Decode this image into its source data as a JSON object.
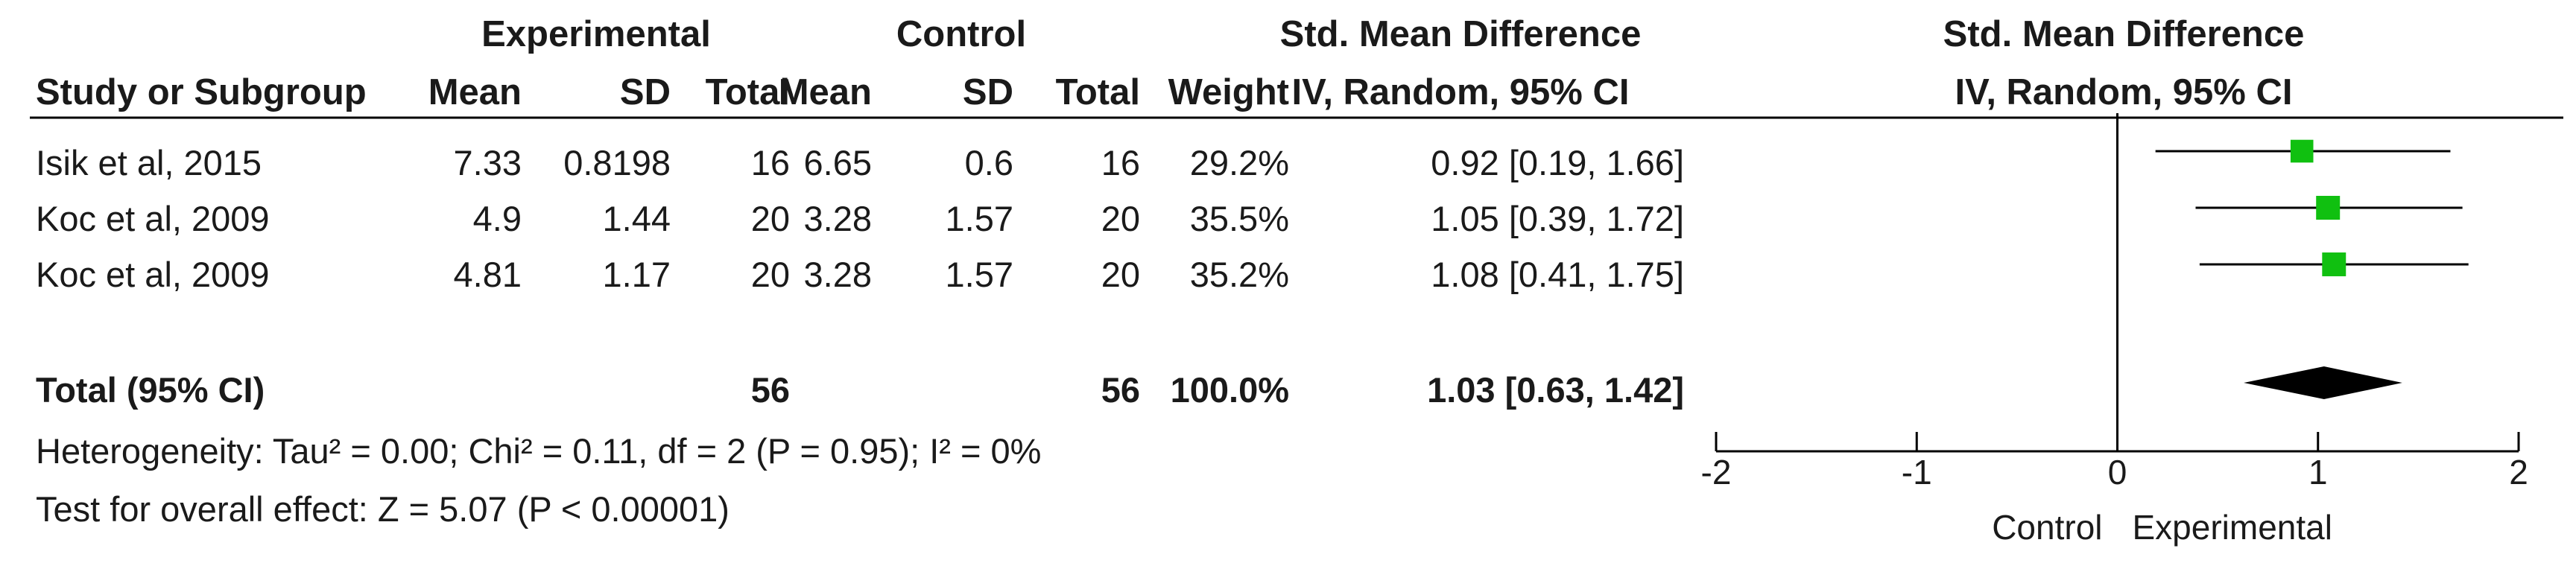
{
  "header": {
    "group_experimental": "Experimental",
    "group_control": "Control",
    "effect_title": "Std. Mean Difference",
    "effect_method": "IV, Random, 95% CI",
    "plot_title": "Std. Mean Difference",
    "plot_method": "IV, Random, 95% CI",
    "col_study": "Study or Subgroup",
    "col_mean_e": "Mean",
    "col_sd_e": "SD",
    "col_total_e": "Total",
    "col_mean_c": "Mean",
    "col_sd_c": "SD",
    "col_total_c": "Total",
    "col_weight": "Weight"
  },
  "rows": [
    {
      "study": "Isik et al, 2015",
      "mean_e": "7.33",
      "sd_e": "0.8198",
      "total_e": "16",
      "mean_c": "6.65",
      "sd_c": "0.6",
      "total_c": "16",
      "weight": "29.2%",
      "ci": "0.92 [0.19, 1.66]"
    },
    {
      "study": "Koc et al, 2009",
      "mean_e": "4.9",
      "sd_e": "1.44",
      "total_e": "20",
      "mean_c": "3.28",
      "sd_c": "1.57",
      "total_c": "20",
      "weight": "35.5%",
      "ci": "1.05 [0.39, 1.72]"
    },
    {
      "study": "Koc et al, 2009",
      "mean_e": "4.81",
      "sd_e": "1.17",
      "total_e": "20",
      "mean_c": "3.28",
      "sd_c": "1.57",
      "total_c": "20",
      "weight": "35.2%",
      "ci": "1.08 [0.41, 1.75]"
    }
  ],
  "total": {
    "label": "Total (95% CI)",
    "total_e": "56",
    "total_c": "56",
    "weight": "100.0%",
    "ci": "1.03 [0.63, 1.42]"
  },
  "footer": {
    "heterogeneity": "Heterogeneity: Tau² = 0.00; Chi² = 0.11, df = 2 (P = 0.95); I² = 0%",
    "overall": "Test for overall effect: Z = 5.07 (P < 0.00001)"
  },
  "axis": {
    "favours_left": "Control",
    "favours_right": "Experimental"
  },
  "colors": {
    "study_marker": "#10c010",
    "diamond": "#000000",
    "line": "#000000"
  },
  "chart_data": {
    "type": "scatter",
    "title": "Std. Mean Difference",
    "subtitle": "IV, Random, 95% CI",
    "xlim": [
      -2,
      2
    ],
    "x_ticks": [
      "-2",
      "-1",
      "0",
      "1",
      "2"
    ],
    "x_tick_values": [
      -2,
      -1,
      0,
      1,
      2
    ],
    "null_line": 0,
    "grid": false,
    "studies": [
      {
        "name": "Isik et al, 2015",
        "estimate": 0.92,
        "lower": 0.19,
        "upper": 1.66,
        "weight": 29.2
      },
      {
        "name": "Koc et al, 2009",
        "estimate": 1.05,
        "lower": 0.39,
        "upper": 1.72,
        "weight": 35.5
      },
      {
        "name": "Koc et al, 2009",
        "estimate": 1.08,
        "lower": 0.41,
        "upper": 1.75,
        "weight": 35.2
      }
    ],
    "pooled": {
      "name": "Total (95% CI)",
      "estimate": 1.03,
      "lower": 0.63,
      "upper": 1.42
    }
  }
}
